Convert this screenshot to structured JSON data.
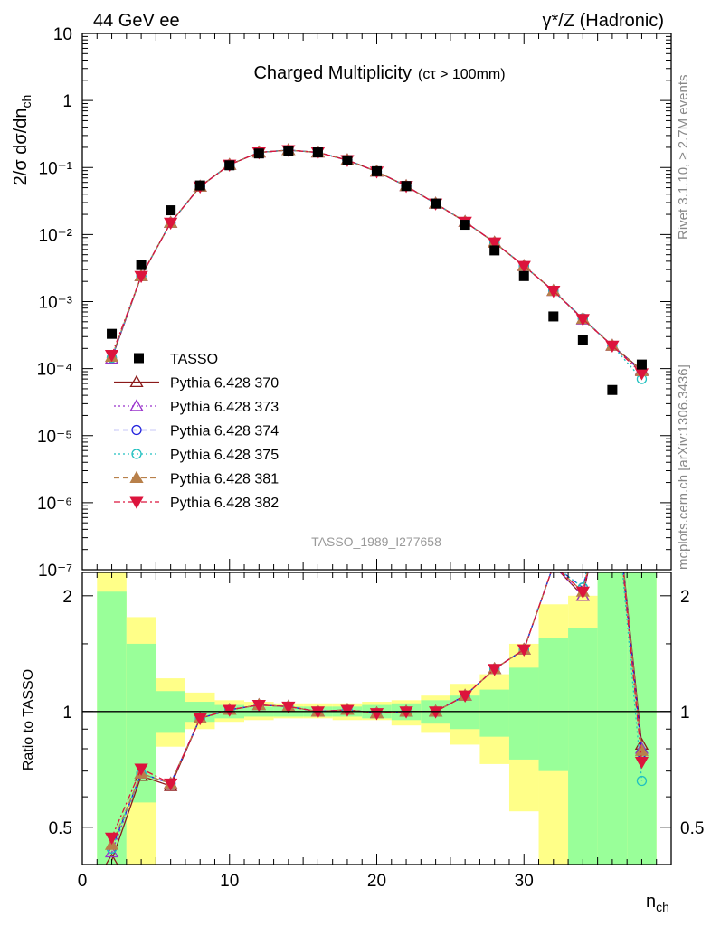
{
  "header": {
    "left": "44 GeV ee",
    "right": "γ*/Z (Hadronic)"
  },
  "side_labels": {
    "rivet": "Rivet 3.1.10, ≥ 2.7M events",
    "mcplots": "mcplots.cern.ch [arXiv:1306.3436]"
  },
  "chart_data": [
    {
      "type": "scatter",
      "title": "Charged Multiplicity",
      "subtitle": "(cτ > 100mm)",
      "watermark": "TASSO_1989_I277658",
      "ylabel": "2/σ dσ/dn_ch",
      "log_y": true,
      "ylim": [
        1e-07,
        10
      ],
      "xlim": [
        0,
        40
      ],
      "y_tick_labels": [
        "10⁻⁷",
        "10⁻⁶",
        "10⁻⁵",
        "10⁻⁴",
        "10⁻³",
        "10⁻²",
        "10⁻¹",
        "1",
        "10"
      ],
      "legend_position": "left-middle",
      "x": [
        2,
        4,
        6,
        8,
        10,
        12,
        14,
        16,
        18,
        20,
        22,
        24,
        26,
        28,
        30,
        32,
        34,
        36,
        38
      ],
      "series": [
        {
          "name": "TASSO",
          "color": "#000000",
          "style": "data",
          "values": [
            0.00033,
            0.0035,
            0.023,
            0.054,
            0.108,
            0.162,
            0.178,
            0.168,
            0.128,
            0.088,
            0.053,
            0.029,
            0.014,
            0.0058,
            0.0024,
            0.0006,
            0.00027,
            4.8e-05,
            0.000115
          ]
        },
        {
          "name": "Pythia 6.428 370",
          "color": "#8b1a1a",
          "style": "solid",
          "values": [
            0.00014,
            0.0024,
            0.015,
            0.052,
            0.11,
            0.168,
            0.182,
            0.168,
            0.129,
            0.087,
            0.053,
            0.029,
            0.0155,
            0.0076,
            0.0034,
            0.00145,
            0.00055,
            0.00022,
            9.5e-05
          ]
        },
        {
          "name": "Pythia 6.428 373",
          "color": "#9932cc",
          "style": "dotted",
          "values": [
            0.00014,
            0.0024,
            0.015,
            0.052,
            0.11,
            0.168,
            0.182,
            0.168,
            0.129,
            0.087,
            0.053,
            0.029,
            0.0155,
            0.0076,
            0.0034,
            0.00145,
            0.00054,
            0.00022,
            9.2e-05
          ]
        },
        {
          "name": "Pythia 6.428 374",
          "color": "#2222dd",
          "style": "dashed",
          "values": [
            0.000145,
            0.0024,
            0.015,
            0.052,
            0.11,
            0.168,
            0.182,
            0.168,
            0.129,
            0.087,
            0.053,
            0.029,
            0.0155,
            0.0076,
            0.0034,
            0.00145,
            0.00056,
            0.00022,
            9e-05
          ]
        },
        {
          "name": "Pythia 6.428 375",
          "color": "#20c0c0",
          "style": "dotted",
          "values": [
            0.000145,
            0.0024,
            0.015,
            0.052,
            0.11,
            0.168,
            0.182,
            0.168,
            0.129,
            0.087,
            0.053,
            0.029,
            0.0155,
            0.0076,
            0.0034,
            0.00145,
            0.00056,
            0.00022,
            7e-05
          ]
        },
        {
          "name": "Pythia 6.428 381",
          "color": "#b8804a",
          "style": "dashed",
          "values": [
            0.00015,
            0.0024,
            0.015,
            0.052,
            0.11,
            0.168,
            0.182,
            0.168,
            0.129,
            0.087,
            0.053,
            0.029,
            0.0155,
            0.0076,
            0.0034,
            0.00145,
            0.00055,
            0.00022,
            9.2e-05
          ]
        },
        {
          "name": "Pythia 6.428 382",
          "color": "#dc143c",
          "style": "dashdot",
          "values": [
            0.00016,
            0.0024,
            0.015,
            0.052,
            0.11,
            0.168,
            0.182,
            0.168,
            0.129,
            0.087,
            0.053,
            0.029,
            0.0155,
            0.0076,
            0.0034,
            0.00145,
            0.00055,
            0.00022,
            8.5e-05
          ]
        }
      ]
    },
    {
      "type": "line",
      "xlabel": "n_ch",
      "ylabel": "Ratio to TASSO",
      "log_y": true,
      "ylim": [
        0.4,
        2.3
      ],
      "xlim": [
        0,
        40
      ],
      "x_ticks": [
        0,
        10,
        20,
        30
      ],
      "y_ticks": [
        0.5,
        1,
        2
      ],
      "y_tick_labels": [
        "0.5",
        "1",
        "2"
      ],
      "reference_line": 1,
      "x": [
        2,
        4,
        6,
        8,
        10,
        12,
        14,
        16,
        18,
        20,
        22,
        24,
        26,
        28,
        30,
        32,
        34,
        36,
        38
      ],
      "series": [
        {
          "name": "Pythia 6.428 370",
          "values": [
            0.41,
            0.68,
            0.64,
            0.96,
            1.01,
            1.04,
            1.03,
            1.0,
            1.01,
            0.99,
            1.0,
            1.0,
            1.1,
            1.29,
            1.45,
            2.4,
            2.0,
            4.5,
            0.82
          ]
        },
        {
          "name": "Pythia 6.428 373",
          "values": [
            0.43,
            0.69,
            0.65,
            0.96,
            1.01,
            1.04,
            1.03,
            1.0,
            1.01,
            0.99,
            1.0,
            1.0,
            1.1,
            1.29,
            1.45,
            2.4,
            2.0,
            4.5,
            0.8
          ]
        },
        {
          "name": "Pythia 6.428 374",
          "values": [
            0.44,
            0.69,
            0.65,
            0.96,
            1.01,
            1.04,
            1.03,
            1.0,
            1.01,
            0.99,
            1.0,
            1.0,
            1.1,
            1.29,
            1.45,
            2.4,
            2.1,
            4.5,
            0.78
          ]
        },
        {
          "name": "Pythia 6.428 375",
          "values": [
            0.44,
            0.69,
            0.65,
            0.96,
            1.01,
            1.04,
            1.03,
            1.0,
            1.01,
            0.99,
            1.0,
            1.0,
            1.1,
            1.29,
            1.45,
            2.4,
            2.1,
            4.5,
            0.66
          ]
        },
        {
          "name": "Pythia 6.428 381",
          "values": [
            0.45,
            0.69,
            0.65,
            0.96,
            1.01,
            1.04,
            1.03,
            1.0,
            1.01,
            0.99,
            1.0,
            1.0,
            1.1,
            1.29,
            1.45,
            2.4,
            2.05,
            4.5,
            0.79
          ]
        },
        {
          "name": "Pythia 6.428 382",
          "values": [
            0.47,
            0.71,
            0.65,
            0.96,
            1.01,
            1.04,
            1.03,
            1.0,
            1.01,
            0.99,
            1.0,
            1.0,
            1.1,
            1.29,
            1.45,
            2.4,
            2.05,
            4.5,
            0.74
          ]
        }
      ],
      "uncertainty_bands": {
        "inner_color": "#99ff99",
        "outer_color": "#ffff88",
        "bins": [
          {
            "x0": 1,
            "x1": 3,
            "inner": [
              0.3,
              2.05
            ],
            "outer": [
              0.3,
              2.4
            ]
          },
          {
            "x0": 3,
            "x1": 5,
            "inner": [
              0.58,
              1.5
            ],
            "outer": [
              0.4,
              1.76
            ]
          },
          {
            "x0": 5,
            "x1": 7,
            "inner": [
              0.88,
              1.13
            ],
            "outer": [
              0.81,
              1.22
            ]
          },
          {
            "x0": 7,
            "x1": 9,
            "inner": [
              0.94,
              1.06
            ],
            "outer": [
              0.9,
              1.12
            ]
          },
          {
            "x0": 9,
            "x1": 11,
            "inner": [
              0.96,
              1.04
            ],
            "outer": [
              0.94,
              1.07
            ]
          },
          {
            "x0": 11,
            "x1": 13,
            "inner": [
              0.97,
              1.03
            ],
            "outer": [
              0.95,
              1.06
            ]
          },
          {
            "x0": 13,
            "x1": 15,
            "inner": [
              0.97,
              1.03
            ],
            "outer": [
              0.96,
              1.05
            ]
          },
          {
            "x0": 15,
            "x1": 17,
            "inner": [
              0.97,
              1.03
            ],
            "outer": [
              0.96,
              1.05
            ]
          },
          {
            "x0": 17,
            "x1": 19,
            "inner": [
              0.97,
              1.03
            ],
            "outer": [
              0.95,
              1.05
            ]
          },
          {
            "x0": 19,
            "x1": 21,
            "inner": [
              0.96,
              1.04
            ],
            "outer": [
              0.95,
              1.06
            ]
          },
          {
            "x0": 21,
            "x1": 23,
            "inner": [
              0.95,
              1.05
            ],
            "outer": [
              0.92,
              1.07
            ]
          },
          {
            "x0": 23,
            "x1": 25,
            "inner": [
              0.93,
              1.07
            ],
            "outer": [
              0.88,
              1.1
            ]
          },
          {
            "x0": 25,
            "x1": 27,
            "inner": [
              0.9,
              1.1
            ],
            "outer": [
              0.82,
              1.18
            ]
          },
          {
            "x0": 27,
            "x1": 29,
            "inner": [
              0.86,
              1.14
            ],
            "outer": [
              0.73,
              1.25
            ]
          },
          {
            "x0": 29,
            "x1": 31,
            "inner": [
              0.75,
              1.3
            ],
            "outer": [
              0.55,
              1.5
            ]
          },
          {
            "x0": 31,
            "x1": 33,
            "inner": [
              0.7,
              1.55
            ],
            "outer": [
              0.3,
              1.9
            ]
          },
          {
            "x0": 33,
            "x1": 35,
            "inner": [
              0.3,
              1.65
            ],
            "outer": [
              0.3,
              2.0
            ]
          },
          {
            "x0": 35,
            "x1": 37,
            "inner": [
              0.3,
              3.0
            ],
            "outer": [
              0.3,
              3.0
            ]
          },
          {
            "x0": 37,
            "x1": 39,
            "inner": [
              0.3,
              3.0
            ],
            "outer": [
              0.3,
              3.0
            ]
          }
        ]
      }
    }
  ]
}
